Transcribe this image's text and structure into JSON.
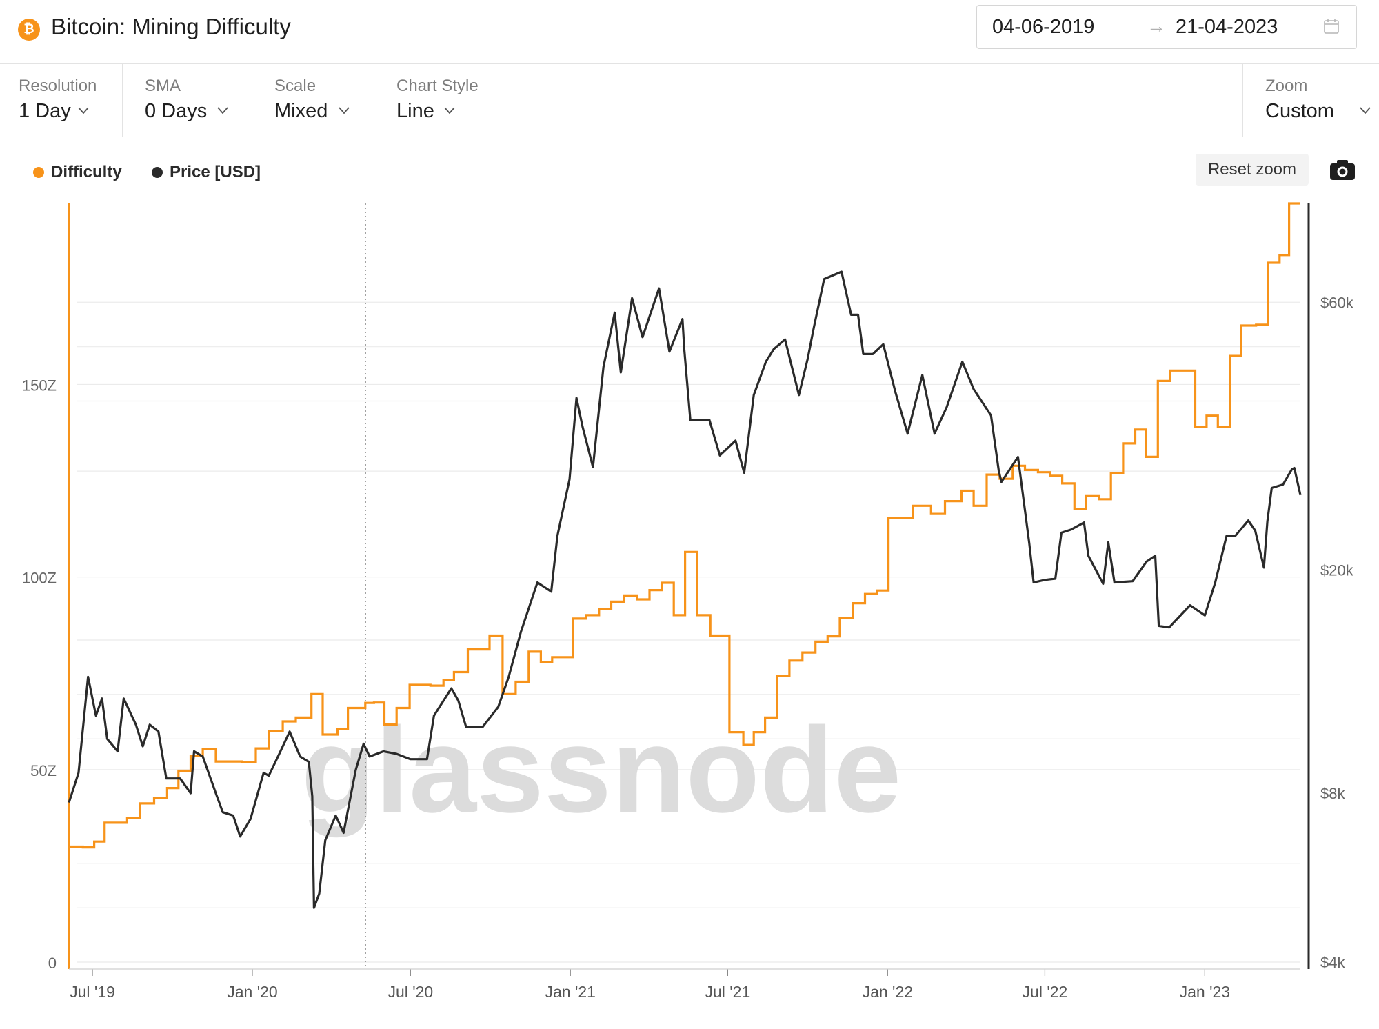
{
  "header": {
    "brand_icon_glyph": "₿",
    "title": "Bitcoin: Mining Difficulty",
    "date_start": "04-06-2019",
    "date_arrow": "→",
    "date_end": "21-04-2023"
  },
  "toolbar": {
    "resolution": {
      "label": "Resolution",
      "value": "1 Day"
    },
    "sma": {
      "label": "SMA",
      "value": "0 Days"
    },
    "scale": {
      "label": "Scale",
      "value": "Mixed"
    },
    "chart_style": {
      "label": "Chart Style",
      "value": "Line"
    },
    "zoom": {
      "label": "Zoom",
      "value": "Custom"
    }
  },
  "legend": {
    "difficulty": "Difficulty",
    "price": "Price [USD]"
  },
  "buttons": {
    "reset_zoom": "Reset zoom"
  },
  "colors": {
    "difficulty": "#f7931a",
    "price": "#2a2a2a",
    "accent": "#f7931a"
  },
  "icons": {
    "brand": "bitcoin-icon",
    "calendar": "calendar-icon",
    "camera": "camera-icon",
    "chevron": "chevron-down-icon"
  },
  "chart_data": {
    "type": "line",
    "title": "Bitcoin: Mining Difficulty",
    "watermark": "glassnode",
    "x_range": [
      "2019-06-04",
      "2023-04-21"
    ],
    "x_ticks": [
      "Jul '19",
      "Jan '20",
      "Jul '20",
      "Jan '21",
      "Jul '21",
      "Jan '22",
      "Jul '22",
      "Jan '23"
    ],
    "y_left": {
      "label": "Difficulty",
      "ticks": [
        "0",
        "50Z",
        "100Z",
        "150Z"
      ],
      "tick_values": [
        0,
        50,
        100,
        150
      ],
      "range": [
        0,
        197
      ],
      "scale": "linear"
    },
    "y_right": {
      "label": "Price [USD]",
      "ticks": [
        "$4k",
        "$8k",
        "$20k",
        "$60k"
      ],
      "tick_values": [
        4000,
        8000,
        20000,
        60000
      ],
      "range": [
        4000,
        90000
      ],
      "scale": "log"
    },
    "series": [
      {
        "name": "Difficulty",
        "axis": "left",
        "step": true,
        "points": [
          [
            "2019-06-04",
            30
          ],
          [
            "2019-06-20",
            29.8
          ],
          [
            "2019-07-03",
            31.3
          ],
          [
            "2019-07-15",
            36.2
          ],
          [
            "2019-08-10",
            37.4
          ],
          [
            "2019-08-25",
            41.2
          ],
          [
            "2019-09-10",
            42.6
          ],
          [
            "2019-09-25",
            45.2
          ],
          [
            "2019-10-08",
            49.7
          ],
          [
            "2019-10-22",
            53.5
          ],
          [
            "2019-11-05",
            55.3
          ],
          [
            "2019-11-20",
            52.1
          ],
          [
            "2019-12-20",
            51.9
          ],
          [
            "2020-01-05",
            55.5
          ],
          [
            "2020-01-20",
            60
          ],
          [
            "2020-02-05",
            62.5
          ],
          [
            "2020-02-20",
            63.5
          ],
          [
            "2020-03-09",
            69.6
          ],
          [
            "2020-03-22",
            59.1
          ],
          [
            "2020-04-08",
            60.6
          ],
          [
            "2020-04-20",
            66
          ],
          [
            "2020-05-10",
            67.3
          ],
          [
            "2020-05-20",
            67.4
          ],
          [
            "2020-06-01",
            61.7
          ],
          [
            "2020-06-15",
            66
          ],
          [
            "2020-06-30",
            72
          ],
          [
            "2020-07-24",
            71.8
          ],
          [
            "2020-08-08",
            73.2
          ],
          [
            "2020-08-20",
            75.3
          ],
          [
            "2020-09-05",
            81.2
          ],
          [
            "2020-09-30",
            84.8
          ],
          [
            "2020-10-15",
            69.6
          ],
          [
            "2020-10-30",
            72.8
          ],
          [
            "2020-11-14",
            80.6
          ],
          [
            "2020-11-28",
            77.9
          ],
          [
            "2020-12-11",
            79.2
          ],
          [
            "2021-01-04",
            89.2
          ],
          [
            "2021-01-19",
            90.1
          ],
          [
            "2021-02-03",
            91.7
          ],
          [
            "2021-02-17",
            93.6
          ],
          [
            "2021-03-04",
            95.2
          ],
          [
            "2021-03-19",
            94.2
          ],
          [
            "2021-04-02",
            96.6
          ],
          [
            "2021-04-16",
            98.5
          ],
          [
            "2021-04-30",
            90.1
          ],
          [
            "2021-05-13",
            106.5
          ],
          [
            "2021-05-27",
            90.1
          ],
          [
            "2021-06-11",
            84.8
          ],
          [
            "2021-07-03",
            59.7
          ],
          [
            "2021-07-19",
            56.4
          ],
          [
            "2021-07-31",
            59.7
          ],
          [
            "2021-08-13",
            63.5
          ],
          [
            "2021-08-27",
            74.3
          ],
          [
            "2021-09-10",
            78.3
          ],
          [
            "2021-09-25",
            80.4
          ],
          [
            "2021-10-10",
            83.2
          ],
          [
            "2021-10-24",
            84.6
          ],
          [
            "2021-11-07",
            89.3
          ],
          [
            "2021-11-22",
            93.2
          ],
          [
            "2021-12-06",
            95.6
          ],
          [
            "2021-12-20",
            96.5
          ],
          [
            "2022-01-02",
            115.3
          ],
          [
            "2022-01-30",
            118.5
          ],
          [
            "2022-02-20",
            116.4
          ],
          [
            "2022-03-08",
            119.7
          ],
          [
            "2022-03-27",
            122.4
          ],
          [
            "2022-04-10",
            118.5
          ],
          [
            "2022-04-25",
            126.6
          ],
          [
            "2022-05-10",
            125.5
          ],
          [
            "2022-05-25",
            128.9
          ],
          [
            "2022-06-08",
            127.8
          ],
          [
            "2022-06-23",
            127.2
          ],
          [
            "2022-07-07",
            126.3
          ],
          [
            "2022-07-21",
            124.3
          ],
          [
            "2022-08-04",
            117.7
          ],
          [
            "2022-08-17",
            121
          ],
          [
            "2022-09-01",
            120.2
          ],
          [
            "2022-09-15",
            126.9
          ],
          [
            "2022-09-29",
            134.7
          ],
          [
            "2022-10-13",
            138.3
          ],
          [
            "2022-10-25",
            131.2
          ],
          [
            "2022-11-08",
            150.9
          ],
          [
            "2022-11-22",
            153.6
          ],
          [
            "2022-12-06",
            153.6
          ],
          [
            "2022-12-21",
            138.9
          ],
          [
            "2023-01-03",
            141.9
          ],
          [
            "2023-01-16",
            138.9
          ],
          [
            "2023-01-30",
            157.4
          ],
          [
            "2023-02-12",
            165.3
          ],
          [
            "2023-03-01",
            165.5
          ],
          [
            "2023-03-15",
            181.6
          ],
          [
            "2023-03-28",
            183.6
          ],
          [
            "2023-04-08",
            197
          ],
          [
            "2023-04-21",
            197
          ]
        ]
      },
      {
        "name": "Price [USD]",
        "axis": "right",
        "points": [
          [
            "2019-06-04",
            7700
          ],
          [
            "2019-06-15",
            8700
          ],
          [
            "2019-06-26",
            12900
          ],
          [
            "2019-07-05",
            11000
          ],
          [
            "2019-07-12",
            11800
          ],
          [
            "2019-07-18",
            10000
          ],
          [
            "2019-07-30",
            9500
          ],
          [
            "2019-08-06",
            11800
          ],
          [
            "2019-08-20",
            10600
          ],
          [
            "2019-08-28",
            9700
          ],
          [
            "2019-09-05",
            10600
          ],
          [
            "2019-09-15",
            10300
          ],
          [
            "2019-09-24",
            8500
          ],
          [
            "2019-10-10",
            8500
          ],
          [
            "2019-10-22",
            8000
          ],
          [
            "2019-10-26",
            9500
          ],
          [
            "2019-11-05",
            9300
          ],
          [
            "2019-11-20",
            8000
          ],
          [
            "2019-11-28",
            7400
          ],
          [
            "2019-12-10",
            7300
          ],
          [
            "2019-12-18",
            6700
          ],
          [
            "2019-12-30",
            7200
          ],
          [
            "2020-01-14",
            8700
          ],
          [
            "2020-01-20",
            8600
          ],
          [
            "2020-02-01",
            9400
          ],
          [
            "2020-02-13",
            10300
          ],
          [
            "2020-02-25",
            9300
          ],
          [
            "2020-03-06",
            9100
          ],
          [
            "2020-03-10",
            7900
          ],
          [
            "2020-03-12",
            5000
          ],
          [
            "2020-03-18",
            5300
          ],
          [
            "2020-03-25",
            6600
          ],
          [
            "2020-04-06",
            7300
          ],
          [
            "2020-04-15",
            6800
          ],
          [
            "2020-04-29",
            8800
          ],
          [
            "2020-05-08",
            9800
          ],
          [
            "2020-05-15",
            9300
          ],
          [
            "2020-05-31",
            9500
          ],
          [
            "2020-06-15",
            9400
          ],
          [
            "2020-07-01",
            9200
          ],
          [
            "2020-07-20",
            9200
          ],
          [
            "2020-07-28",
            11000
          ],
          [
            "2020-08-17",
            12300
          ],
          [
            "2020-08-25",
            11700
          ],
          [
            "2020-09-03",
            10500
          ],
          [
            "2020-09-22",
            10500
          ],
          [
            "2020-10-10",
            11400
          ],
          [
            "2020-10-22",
            12900
          ],
          [
            "2020-11-05",
            15500
          ],
          [
            "2020-11-24",
            19000
          ],
          [
            "2020-12-10",
            18300
          ],
          [
            "2020-12-17",
            23000
          ],
          [
            "2020-12-31",
            29000
          ],
          [
            "2021-01-08",
            40500
          ],
          [
            "2021-01-15",
            36000
          ],
          [
            "2021-01-27",
            30500
          ],
          [
            "2021-02-08",
            46000
          ],
          [
            "2021-02-21",
            57500
          ],
          [
            "2021-02-28",
            45000
          ],
          [
            "2021-03-13",
            61000
          ],
          [
            "2021-03-25",
            52000
          ],
          [
            "2021-04-13",
            63500
          ],
          [
            "2021-04-25",
            49000
          ],
          [
            "2021-05-10",
            56000
          ],
          [
            "2021-05-12",
            49500
          ],
          [
            "2021-05-19",
            37000
          ],
          [
            "2021-05-31",
            37000
          ],
          [
            "2021-06-10",
            37000
          ],
          [
            "2021-06-22",
            32000
          ],
          [
            "2021-07-10",
            34000
          ],
          [
            "2021-07-20",
            29800
          ],
          [
            "2021-07-31",
            41000
          ],
          [
            "2021-08-14",
            47000
          ],
          [
            "2021-08-23",
            49500
          ],
          [
            "2021-09-05",
            51500
          ],
          [
            "2021-09-21",
            41000
          ],
          [
            "2021-10-01",
            47500
          ],
          [
            "2021-10-08",
            54000
          ],
          [
            "2021-10-20",
            66000
          ],
          [
            "2021-11-09",
            68000
          ],
          [
            "2021-11-20",
            57000
          ],
          [
            "2021-11-28",
            57000
          ],
          [
            "2021-12-04",
            48500
          ],
          [
            "2021-12-15",
            48500
          ],
          [
            "2021-12-27",
            50500
          ],
          [
            "2022-01-10",
            41500
          ],
          [
            "2022-01-24",
            35000
          ],
          [
            "2022-02-10",
            44500
          ],
          [
            "2022-02-24",
            35000
          ],
          [
            "2022-03-10",
            39000
          ],
          [
            "2022-03-28",
            47000
          ],
          [
            "2022-04-10",
            42000
          ],
          [
            "2022-04-30",
            37700
          ],
          [
            "2022-05-09",
            30000
          ],
          [
            "2022-05-12",
            28700
          ],
          [
            "2022-05-31",
            31800
          ],
          [
            "2022-06-13",
            22300
          ],
          [
            "2022-06-18",
            19000
          ],
          [
            "2022-07-01",
            19200
          ],
          [
            "2022-07-13",
            19300
          ],
          [
            "2022-07-20",
            23300
          ],
          [
            "2022-07-31",
            23600
          ],
          [
            "2022-08-15",
            24300
          ],
          [
            "2022-08-20",
            21200
          ],
          [
            "2022-09-06",
            18900
          ],
          [
            "2022-09-12",
            22400
          ],
          [
            "2022-09-19",
            19000
          ],
          [
            "2022-10-10",
            19100
          ],
          [
            "2022-10-26",
            20700
          ],
          [
            "2022-11-05",
            21200
          ],
          [
            "2022-11-09",
            15900
          ],
          [
            "2022-11-21",
            15800
          ],
          [
            "2022-12-15",
            17300
          ],
          [
            "2023-01-01",
            16600
          ],
          [
            "2023-01-13",
            19000
          ],
          [
            "2023-01-26",
            23000
          ],
          [
            "2023-02-05",
            23000
          ],
          [
            "2023-02-20",
            24500
          ],
          [
            "2023-02-28",
            23500
          ],
          [
            "2023-03-10",
            20200
          ],
          [
            "2023-03-14",
            24400
          ],
          [
            "2023-03-19",
            28000
          ],
          [
            "2023-04-01",
            28400
          ],
          [
            "2023-04-11",
            30200
          ],
          [
            "2023-04-14",
            30400
          ],
          [
            "2023-04-21",
            27200
          ]
        ]
      }
    ],
    "cursor_date": "2020-05-10"
  }
}
